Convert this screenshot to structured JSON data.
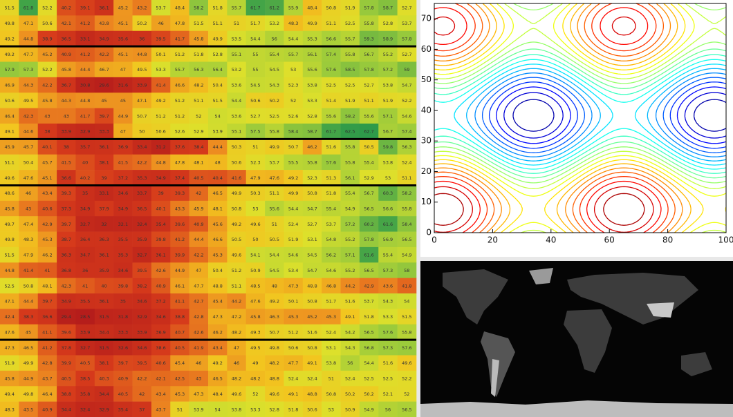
{
  "table": {
    "groups": [
      [
        [
          51.5,
          61.8,
          52.2,
          40.2,
          39.1,
          36.1,
          45.2,
          43.2,
          53.7,
          48.4,
          58.2,
          51.8,
          55.7,
          61.7,
          61.2,
          55.9,
          48.4,
          50.8,
          51.9,
          57.8,
          58.7,
          52.7
        ],
        [
          49.8,
          47.1,
          50.6,
          42.1,
          41.2,
          43.8,
          45.1,
          50.2,
          46.0,
          47.8,
          51.5,
          51.1,
          51.0,
          51.7,
          53.2,
          48.3,
          49.9,
          51.1,
          52.5,
          55.8,
          52.8,
          53.7
        ],
        [
          49.2,
          44.8,
          38.9,
          36.5,
          33.1,
          34.9,
          35.6,
          36.0,
          39.5,
          41.7,
          45.8,
          49.9,
          53.5,
          54.4,
          56.0,
          54.4,
          55.3,
          56.6,
          55.7,
          59.3,
          58.9,
          57.8
        ]
      ],
      [
        [
          49.2,
          47.7,
          45.2,
          40.9,
          41.2,
          42.2,
          45.1,
          44.8,
          50.1,
          51.2,
          51.8,
          52.8,
          55.1,
          55.0,
          55.4,
          55.7,
          56.1,
          57.4,
          55.8,
          56.7,
          55.2,
          52.7
        ],
        [
          57.9,
          57.3,
          52.2,
          45.8,
          44.4,
          46.7,
          47.0,
          49.5,
          53.3,
          55.7,
          56.3,
          56.4,
          53.2,
          55.0,
          54.5,
          53.0,
          55.6,
          57.6,
          58.5,
          57.8,
          57.2,
          59.0
        ],
        [
          46.9,
          44.3,
          42.2,
          36.7,
          30.8,
          29.6,
          31.6,
          33.9,
          41.4,
          46.6,
          48.2,
          50.4,
          53.6,
          54.5,
          54.3,
          52.3,
          53.8,
          52.5,
          52.5,
          52.7,
          53.8,
          54.7
        ],
        [
          50.6,
          49.5,
          45.8,
          44.3,
          44.8,
          45.0,
          45.0,
          47.1,
          49.2,
          51.2,
          51.1,
          51.5,
          54.4,
          50.6,
          50.2,
          52.0,
          53.3,
          51.4,
          51.9,
          51.1,
          51.9,
          52.2
        ],
        [
          46.4,
          42.3,
          43.0,
          43.0,
          41.7,
          39.7,
          44.9,
          50.7,
          51.2,
          51.2,
          52.0,
          54.0,
          53.6,
          52.7,
          52.5,
          52.6,
          52.8,
          55.6,
          58.2,
          55.6,
          57.1,
          54.6
        ],
        [
          49.1,
          44.6,
          38.0,
          33.9,
          32.9,
          33.3,
          47.0,
          50.0,
          50.6,
          52.6,
          52.9,
          53.9,
          55.1,
          57.5,
          55.8,
          58.4,
          58.7,
          61.7,
          62.5,
          62.7,
          56.7,
          57.4
        ]
      ],
      [
        [
          45.9,
          45.7,
          40.1,
          38.0,
          35.7,
          36.1,
          36.9,
          33.4,
          31.2,
          37.6,
          38.4,
          44.4,
          50.3,
          51.0,
          49.9,
          50.7,
          46.2,
          51.6,
          55.8,
          50.5,
          59.8,
          56.3
        ],
        [
          51.1,
          50.4,
          45.7,
          41.5,
          40.0,
          38.1,
          41.5,
          42.2,
          44.8,
          47.8,
          48.1,
          48.0,
          50.6,
          52.3,
          53.7,
          55.5,
          55.8,
          57.6,
          55.8,
          55.4,
          53.8,
          52.4
        ],
        [
          49.6,
          47.6,
          45.1,
          36.6,
          40.2,
          39.0,
          37.2,
          35.3,
          34.9,
          37.4,
          40.5,
          40.4,
          41.6,
          47.9,
          47.6,
          49.2,
          52.3,
          51.3,
          56.1,
          52.9,
          53.0,
          51.1
        ]
      ],
      [
        [
          48.6,
          46.0,
          43.4,
          39.3,
          35.0,
          33.1,
          34.6,
          33.7,
          39.0,
          39.3,
          42.0,
          46.5,
          49.9,
          50.3,
          51.1,
          49.9,
          50.8,
          51.8,
          55.4,
          56.7,
          60.3,
          58.2
        ],
        [
          45.8,
          43.0,
          40.6,
          37.3,
          34.9,
          37.9,
          34.9,
          36.5,
          40.1,
          43.3,
          45.9,
          48.1,
          50.8,
          53.0,
          55.6,
          54.4,
          54.7,
          55.4,
          54.9,
          56.5,
          56.6,
          55.8
        ],
        [
          49.7,
          47.4,
          42.9,
          39.7,
          32.7,
          32.0,
          32.1,
          32.4,
          35.4,
          39.6,
          40.9,
          45.6,
          49.2,
          49.6,
          51.0,
          52.4,
          52.7,
          53.7,
          57.2,
          60.2,
          61.6,
          58.4
        ],
        [
          49.8,
          48.3,
          45.3,
          38.7,
          36.4,
          36.3,
          35.5,
          35.9,
          39.8,
          41.2,
          44.4,
          46.6,
          50.5,
          50.0,
          50.5,
          51.9,
          53.1,
          54.8,
          55.2,
          57.8,
          56.9,
          56.5
        ],
        [
          51.5,
          47.9,
          46.2,
          36.3,
          34.7,
          36.1,
          35.3,
          32.7,
          36.1,
          39.9,
          42.2,
          45.3,
          49.6,
          54.1,
          54.4,
          54.6,
          54.5,
          56.2,
          57.1,
          61.6,
          55.4,
          54.9
        ],
        [
          44.8,
          41.4,
          41.0,
          36.8,
          36.0,
          35.9,
          34.6,
          39.5,
          42.6,
          44.9,
          47.0,
          50.4,
          51.2,
          50.9,
          54.5,
          53.4,
          54.7,
          54.6,
          55.2,
          56.5,
          57.3,
          58.0
        ],
        [
          52.5,
          50.8,
          48.1,
          42.3,
          41.0,
          40.0,
          39.8,
          38.2,
          40.9,
          46.1,
          47.7,
          48.8,
          51.1,
          48.5,
          48.0,
          47.3,
          48.8,
          46.8,
          44.2,
          42.9,
          43.6,
          41.8
        ],
        [
          47.1,
          44.4,
          39.7,
          34.9,
          35.5,
          36.1,
          35.0,
          34.6,
          37.2,
          41.1,
          42.7,
          45.4,
          44.2,
          47.6,
          49.2,
          50.1,
          50.8,
          51.7,
          51.6,
          53.7,
          54.3,
          54.0
        ],
        [
          42.4,
          38.3,
          36.6,
          29.4,
          28.5,
          31.5,
          31.8,
          32.9,
          34.6,
          38.8,
          42.8,
          47.3,
          47.2,
          45.8,
          46.3,
          45.3,
          45.2,
          45.3,
          49.1,
          51.8,
          53.3,
          51.5
        ],
        [
          47.6,
          45.0,
          41.1,
          39.6,
          33.9,
          34.4,
          33.3,
          33.9,
          36.9,
          40.7,
          42.6,
          46.2,
          48.2,
          49.3,
          50.7,
          51.2,
          51.6,
          52.4,
          54.2,
          56.5,
          57.6,
          55.8
        ]
      ],
      [
        [
          47.3,
          46.5,
          41.2,
          37.8,
          32.7,
          31.5,
          32.6,
          34.6,
          38.6,
          40.5,
          41.9,
          43.4,
          47.0,
          49.5,
          49.8,
          50.6,
          50.8,
          53.1,
          54.3,
          56.8,
          57.3,
          57.6
        ],
        [
          51.9,
          49.9,
          42.8,
          39.9,
          40.5,
          38.1,
          39.7,
          39.5,
          40.6,
          45.4,
          46.0,
          49.2,
          46.0,
          49.0,
          48.2,
          47.7,
          49.1,
          53.8,
          56.0,
          54.4,
          51.6,
          49.6
        ],
        [
          45.8,
          44.9,
          43.7,
          40.5,
          38.5,
          40.3,
          40.9,
          42.2,
          42.1,
          42.5,
          43.0,
          46.5,
          48.2,
          48.2,
          48.8,
          52.4,
          52.4,
          51.0,
          52.4,
          52.5,
          52.5,
          52.2
        ],
        [
          49.4,
          49.8,
          46.4,
          38.8,
          35.8,
          34.4,
          40.5,
          42.0,
          43.4,
          45.3,
          47.3,
          48.4,
          49.6,
          52.0,
          49.6,
          49.1,
          48.8,
          50.8,
          50.2,
          50.2,
          52.1,
          52.0
        ],
        [
          48.3,
          43.5,
          40.9,
          34.4,
          32.4,
          32.9,
          35.4,
          37.0,
          43.7,
          51.0,
          53.9,
          54.0,
          53.8,
          53.3,
          52.8,
          51.8,
          50.6,
          53.0,
          50.9,
          54.9,
          56.0,
          56.5
        ]
      ]
    ]
  },
  "chart_data": {
    "type": "contour",
    "xlim": [
      0,
      100
    ],
    "ylim": [
      0,
      75
    ],
    "xticks": [
      0,
      20,
      40,
      60,
      80,
      100
    ],
    "yticks": [
      0,
      10,
      20,
      30,
      40,
      50,
      60,
      70
    ]
  }
}
